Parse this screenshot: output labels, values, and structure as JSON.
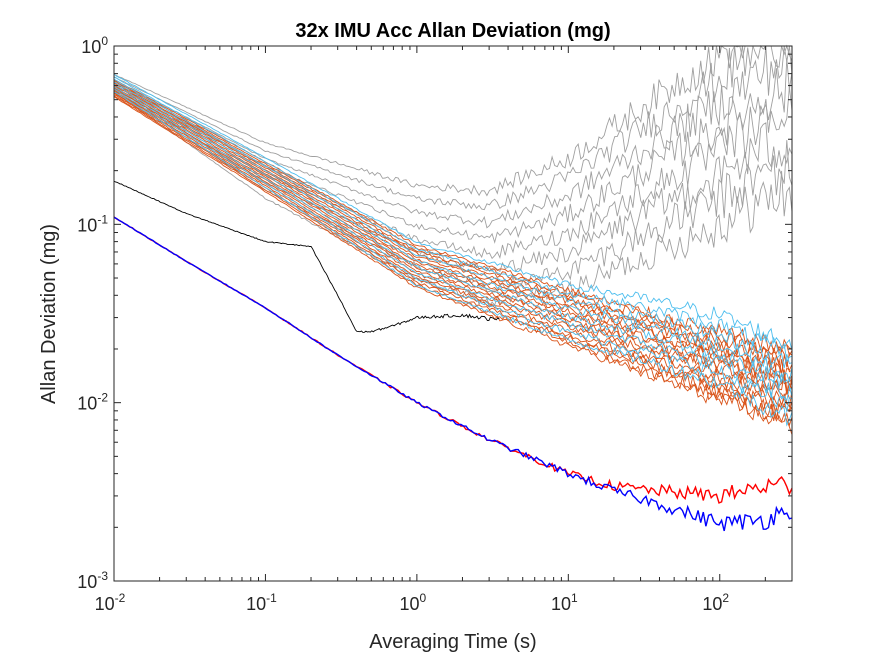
{
  "chart_data": {
    "type": "line",
    "title": "32x IMU Acc Allan Deviation (mg)",
    "xlabel": "Averaging Time (s)",
    "ylabel": "Allan Deviation  (mg)",
    "x_scale": "log",
    "y_scale": "log",
    "xlim": [
      0.01,
      300
    ],
    "ylim": [
      0.001,
      1
    ],
    "grid": false,
    "legend": "none",
    "x_ticks": [
      {
        "value": 0.01,
        "base": "10",
        "exp": "-2"
      },
      {
        "value": 0.1,
        "base": "10",
        "exp": "-1"
      },
      {
        "value": 1,
        "base": "10",
        "exp": "0"
      },
      {
        "value": 10,
        "base": "10",
        "exp": "1"
      },
      {
        "value": 100,
        "base": "10",
        "exp": "2"
      }
    ],
    "y_ticks": [
      {
        "value": 0.001,
        "base": "10",
        "exp": "-3"
      },
      {
        "value": 0.01,
        "base": "10",
        "exp": "-2"
      },
      {
        "value": 0.1,
        "base": "10",
        "exp": "-1"
      },
      {
        "value": 1,
        "base": "10",
        "exp": "0"
      }
    ],
    "series": [
      {
        "group": "gray",
        "color": "#a0a0a0",
        "count": 8,
        "x": [
          0.01,
          0.1,
          1,
          3,
          10,
          30,
          100,
          200,
          300
        ],
        "y": [
          0.62,
          0.2,
          0.09,
          0.075,
          0.1,
          0.17,
          0.3,
          0.45,
          0.5
        ]
      },
      {
        "group": "orange",
        "color": "#d95319",
        "count": 16,
        "x": [
          0.01,
          0.1,
          1,
          10,
          30,
          100,
          300
        ],
        "y": [
          0.58,
          0.185,
          0.058,
          0.03,
          0.022,
          0.016,
          0.012
        ]
      },
      {
        "group": "cyan",
        "color": "#4dbeee",
        "count": 8,
        "x": [
          0.01,
          0.1,
          1,
          10,
          30,
          100,
          300
        ],
        "y": [
          0.62,
          0.195,
          0.06,
          0.032,
          0.026,
          0.02,
          0.013
        ]
      },
      {
        "group": "black",
        "color": "#000000",
        "count": 1,
        "x": [
          0.01,
          0.03,
          0.1,
          0.2,
          0.3,
          0.4,
          0.5,
          0.7,
          1,
          2,
          3.5
        ],
        "y": [
          0.175,
          0.115,
          0.08,
          0.075,
          0.04,
          0.025,
          0.025,
          0.027,
          0.03,
          0.031,
          0.029
        ]
      },
      {
        "group": "red",
        "color": "#ff0000",
        "count": 1,
        "x": [
          0.01,
          0.03,
          0.1,
          0.3,
          1,
          3,
          10,
          20,
          40,
          100,
          200,
          300
        ],
        "y": [
          0.11,
          0.062,
          0.034,
          0.0185,
          0.01,
          0.0062,
          0.004,
          0.0034,
          0.0032,
          0.003,
          0.0034,
          0.0035
        ]
      },
      {
        "group": "blue",
        "color": "#0000ff",
        "count": 1,
        "x": [
          0.01,
          0.03,
          0.1,
          0.3,
          1,
          3,
          10,
          20,
          40,
          100,
          200,
          300
        ],
        "y": [
          0.11,
          0.062,
          0.034,
          0.0185,
          0.01,
          0.0062,
          0.004,
          0.0032,
          0.0027,
          0.0021,
          0.0022,
          0.0026
        ]
      }
    ]
  }
}
